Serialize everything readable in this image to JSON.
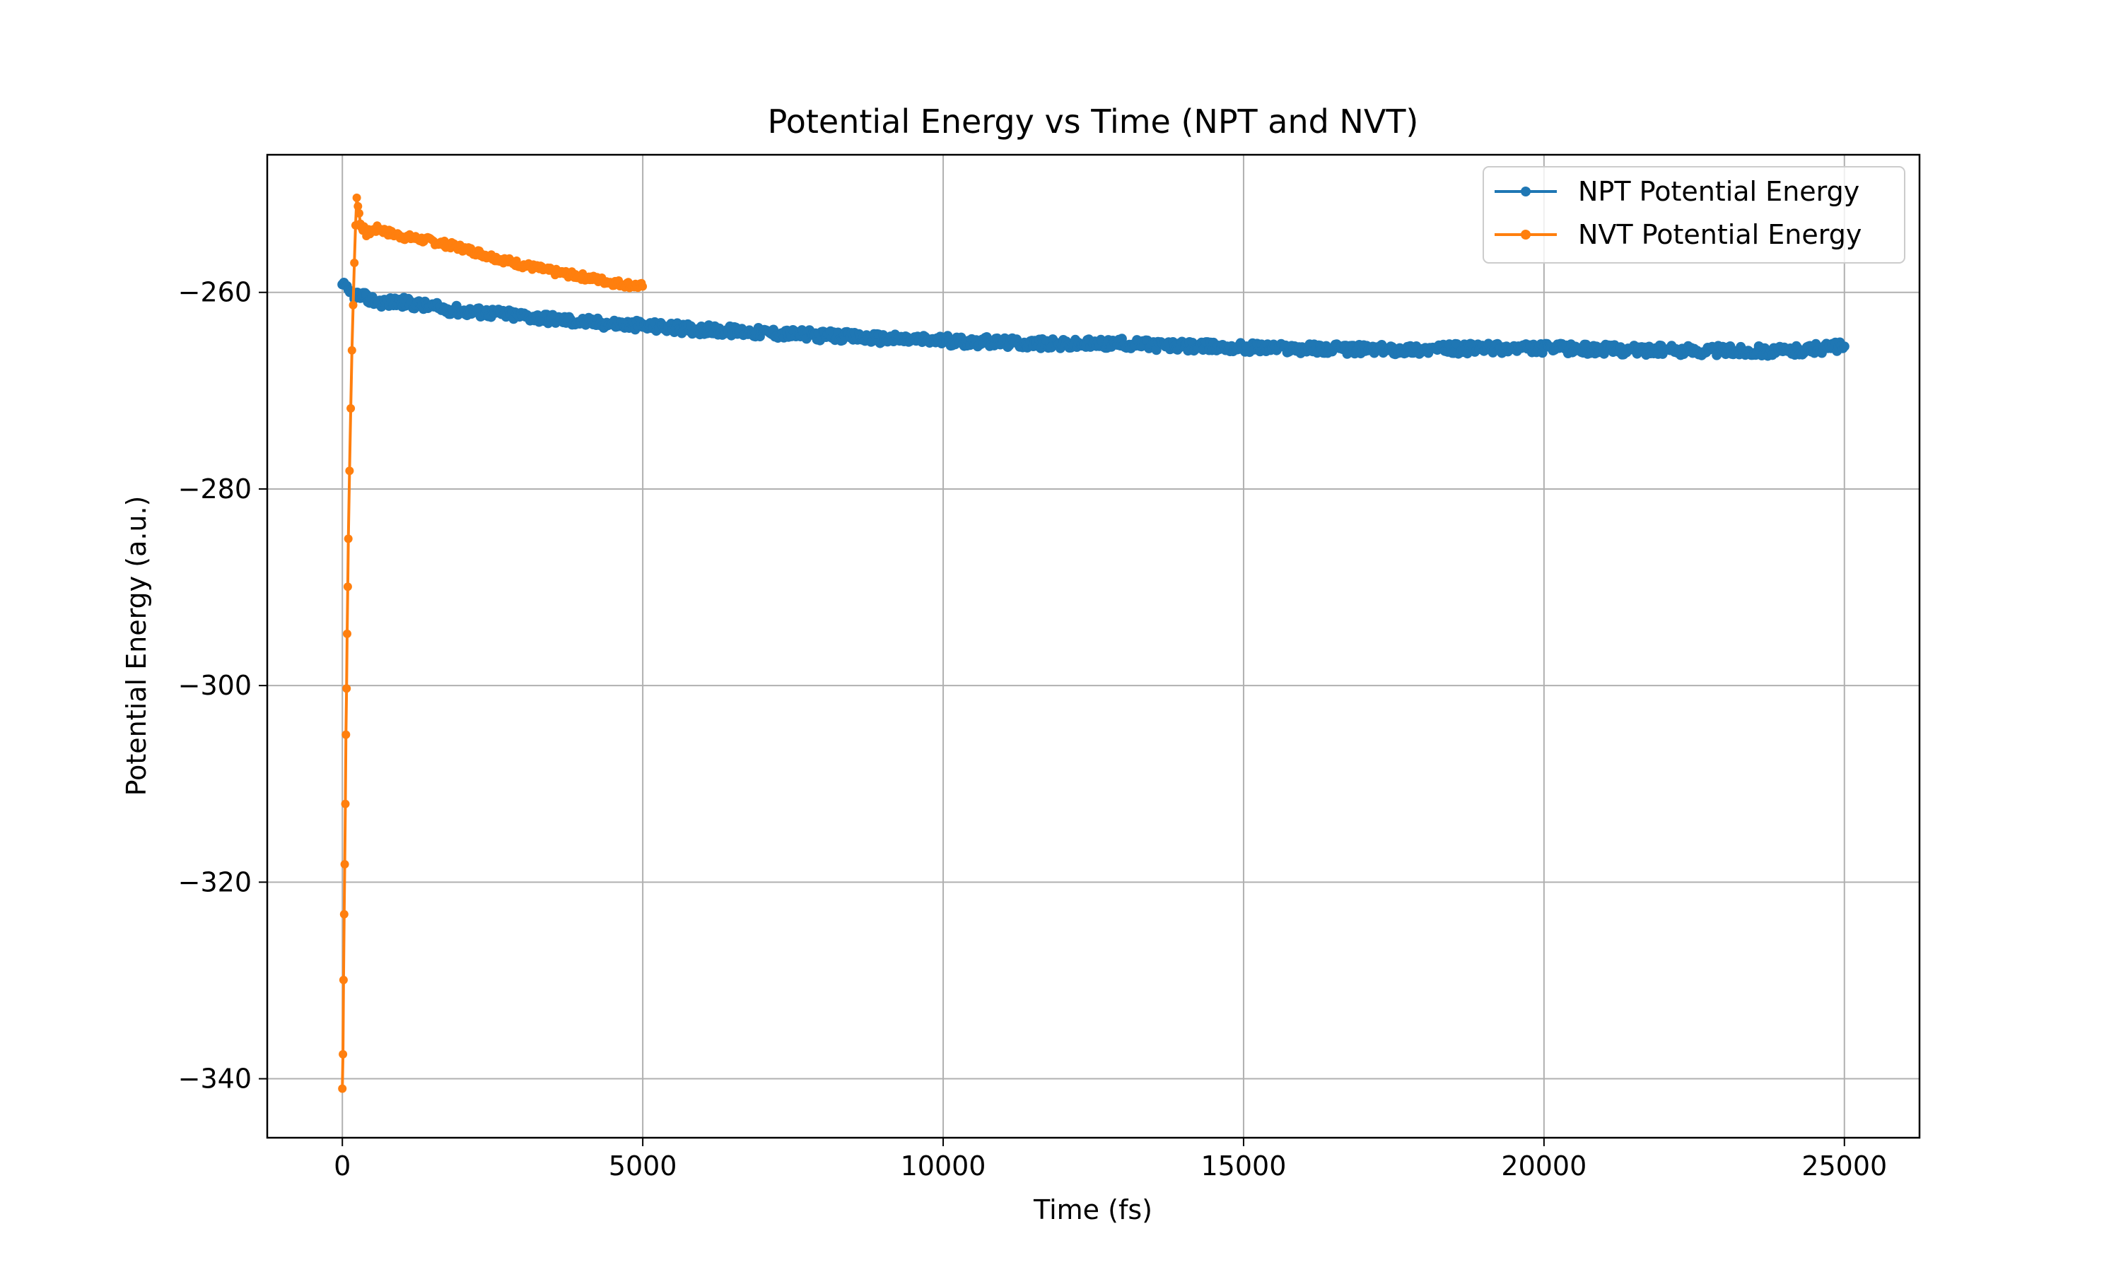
{
  "chart_data": {
    "type": "line",
    "title": "Potential Energy vs Time (NPT and NVT)",
    "xlabel": "Time (fs)",
    "ylabel": "Potential Energy (a.u.)",
    "xlim": [
      -1250,
      26250
    ],
    "ylim": [
      -346,
      -246
    ],
    "xticks": [
      0,
      5000,
      10000,
      15000,
      20000,
      25000
    ],
    "xtick_labels": [
      "0",
      "5000",
      "10000",
      "15000",
      "20000",
      "25000"
    ],
    "yticks": [
      -340,
      -320,
      -300,
      -280,
      -260
    ],
    "ytick_labels": [
      "−340",
      "−320",
      "−300",
      "−280",
      "−260"
    ],
    "grid": true,
    "legend_position": "top-right",
    "series": [
      {
        "name": "NPT Potential Energy",
        "color": "#1f77b4",
        "marker": "circle",
        "points": [
          [
            0,
            -259.2
          ],
          [
            100,
            -260.0
          ],
          [
            300,
            -260.4
          ],
          [
            600,
            -261.0
          ],
          [
            1000,
            -261.0
          ],
          [
            1500,
            -261.5
          ],
          [
            2000,
            -261.9
          ],
          [
            2500,
            -262.1
          ],
          [
            3000,
            -262.4
          ],
          [
            3500,
            -262.7
          ],
          [
            4000,
            -263.0
          ],
          [
            4500,
            -263.2
          ],
          [
            5000,
            -263.4
          ],
          [
            6000,
            -263.8
          ],
          [
            7000,
            -264.1
          ],
          [
            8000,
            -264.4
          ],
          [
            9000,
            -264.7
          ],
          [
            10000,
            -264.9
          ],
          [
            11000,
            -265.1
          ],
          [
            12000,
            -265.3
          ],
          [
            13000,
            -265.2
          ],
          [
            14000,
            -265.5
          ],
          [
            15000,
            -265.6
          ],
          [
            16000,
            -265.7
          ],
          [
            17000,
            -265.8
          ],
          [
            18000,
            -265.8
          ],
          [
            19000,
            -265.7
          ],
          [
            20000,
            -265.7
          ],
          [
            21000,
            -265.8
          ],
          [
            22000,
            -265.9
          ],
          [
            23000,
            -265.9
          ],
          [
            24000,
            -266.0
          ],
          [
            25000,
            -265.5
          ]
        ]
      },
      {
        "name": "NVT Potential Energy",
        "color": "#ff7f0e",
        "marker": "circle",
        "points": [
          [
            0,
            -341.0
          ],
          [
            10,
            -337.5
          ],
          [
            20,
            -330.0
          ],
          [
            30,
            -323.0
          ],
          [
            40,
            -318.0
          ],
          [
            50,
            -312.0
          ],
          [
            60,
            -305.0
          ],
          [
            70,
            -300.0
          ],
          [
            80,
            -295.0
          ],
          [
            90,
            -290.0
          ],
          [
            100,
            -285.0
          ],
          [
            120,
            -278.0
          ],
          [
            140,
            -272.0
          ],
          [
            160,
            -266.0
          ],
          [
            180,
            -261.0
          ],
          [
            200,
            -257.0
          ],
          [
            220,
            -253.0
          ],
          [
            240,
            -250.5
          ],
          [
            260,
            -251.0
          ],
          [
            300,
            -253.0
          ],
          [
            400,
            -254.0
          ],
          [
            600,
            -253.5
          ],
          [
            800,
            -254.0
          ],
          [
            1000,
            -254.3
          ],
          [
            1500,
            -254.8
          ],
          [
            2000,
            -255.5
          ],
          [
            2500,
            -256.4
          ],
          [
            3000,
            -257.2
          ],
          [
            3500,
            -257.9
          ],
          [
            4000,
            -258.4
          ],
          [
            4500,
            -259.0
          ],
          [
            5000,
            -259.4
          ]
        ]
      }
    ]
  }
}
